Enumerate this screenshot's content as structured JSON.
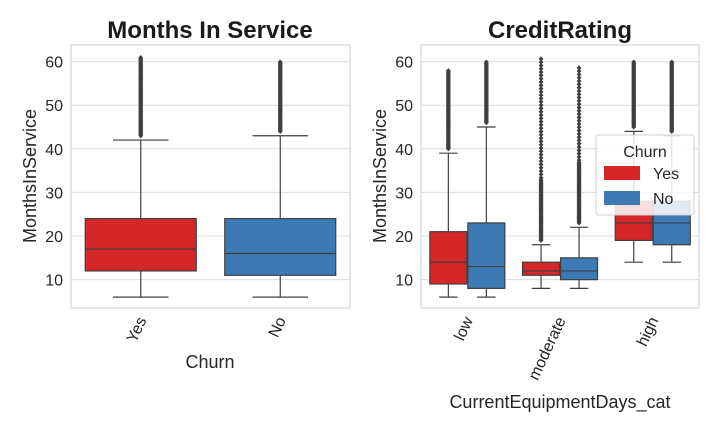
{
  "chart_data": [
    {
      "type": "box",
      "title": "Months In Service",
      "xlabel": "Churn",
      "ylabel": "MonthsInService",
      "ylim": [
        3.5,
        63.8
      ],
      "yticks": [
        10,
        20,
        30,
        40,
        50,
        60
      ],
      "grid": true,
      "categories": [
        "Yes",
        "No"
      ],
      "boxes": [
        {
          "category": "Yes",
          "color": "#d62728",
          "whisker_low": 6,
          "q1": 12,
          "median": 17,
          "q3": 24,
          "whisker_high": 42,
          "outlier_min": 43,
          "outlier_max": 61
        },
        {
          "category": "No",
          "color": "#3d7ab3",
          "whisker_low": 6,
          "q1": 11,
          "median": 16,
          "q3": 24,
          "whisker_high": 43,
          "outlier_min": 44,
          "outlier_max": 60
        }
      ]
    },
    {
      "type": "box",
      "title": "CreditRating",
      "xlabel": "CurrentEquipmentDays_cat",
      "ylabel": "MonthsInService",
      "ylim": [
        3.5,
        63.8
      ],
      "yticks": [
        10,
        20,
        30,
        40,
        50,
        60
      ],
      "grid": true,
      "categories": [
        "low",
        "moderate",
        "high"
      ],
      "legend": {
        "title": "Churn",
        "placement": "right",
        "entries": [
          {
            "label": "Yes",
            "color": "#d62728"
          },
          {
            "label": "No",
            "color": "#3d7ab3"
          }
        ]
      },
      "boxes": [
        {
          "category": "low",
          "group": "Yes",
          "color": "#d62728",
          "whisker_low": 6,
          "q1": 9,
          "median": 14,
          "q3": 21,
          "whisker_high": 39,
          "outlier_min": 40,
          "outlier_max": 58
        },
        {
          "category": "low",
          "group": "No",
          "color": "#3d7ab3",
          "whisker_low": 6,
          "q1": 8,
          "median": 13,
          "q3": 23,
          "whisker_high": 45,
          "outlier_min": 46,
          "outlier_max": 60
        },
        {
          "category": "moderate",
          "group": "Yes",
          "color": "#d62728",
          "whisker_low": 8,
          "q1": 11,
          "median": 12,
          "q3": 14,
          "whisker_high": 18,
          "outlier_min": 19,
          "outlier_max": 61
        },
        {
          "category": "moderate",
          "group": "No",
          "color": "#3d7ab3",
          "whisker_low": 8,
          "q1": 10,
          "median": 12,
          "q3": 15,
          "whisker_high": 22,
          "outlier_min": 23,
          "outlier_max": 59
        },
        {
          "category": "high",
          "group": "Yes",
          "color": "#d62728",
          "whisker_low": 14,
          "q1": 19,
          "median": 23,
          "q3": 28,
          "whisker_high": 44,
          "outlier_min": 45,
          "outlier_max": 60
        },
        {
          "category": "high",
          "group": "No",
          "color": "#3d7ab3",
          "whisker_low": 14,
          "q1": 18,
          "median": 23,
          "q3": 28,
          "whisker_high": 43,
          "outlier_min": 44,
          "outlier_max": 60
        }
      ]
    }
  ]
}
